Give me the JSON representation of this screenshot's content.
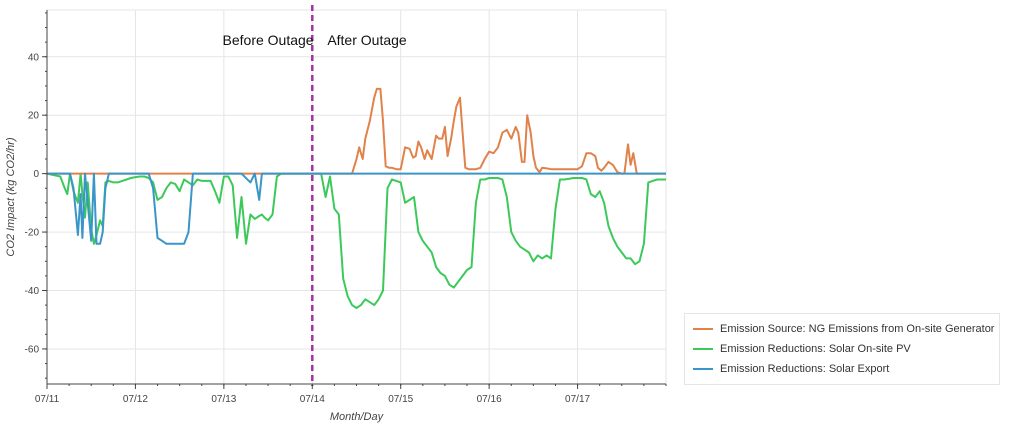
{
  "chart_data": {
    "type": "line",
    "xlabel": "Month/Day",
    "ylabel": "CO2 Impact (kg CO2/hr)",
    "xlim": [
      0,
      7.0
    ],
    "ylim": [
      -72,
      56
    ],
    "x_ticks": [
      {
        "value": 0,
        "label": "07/11"
      },
      {
        "value": 1,
        "label": "07/12"
      },
      {
        "value": 2,
        "label": "07/13"
      },
      {
        "value": 3,
        "label": "07/14"
      },
      {
        "value": 4,
        "label": "07/15"
      },
      {
        "value": 5,
        "label": "07/16"
      },
      {
        "value": 6,
        "label": "07/17"
      }
    ],
    "y_ticks": [
      -60,
      -40,
      -20,
      0,
      20,
      40
    ],
    "grid": true,
    "legend_position": "bottom-right outside plot",
    "annotations": [
      {
        "text": "Before Outage",
        "x": 2.5,
        "y": 44,
        "anchor": "middle"
      },
      {
        "text": "After Outage",
        "x": 3.17,
        "y": 44,
        "anchor": "start"
      }
    ],
    "vline": {
      "x": 3.0,
      "color": "#a1349e",
      "style": "dashed"
    },
    "series": [
      {
        "name": "Emission Source: NG Emissions from On-site Generator",
        "color": "#e0824a",
        "x": [
          0,
          3.0,
          3.45,
          3.5,
          3.53,
          3.57,
          3.6,
          3.65,
          3.7,
          3.73,
          3.77,
          3.8,
          3.83,
          3.87,
          3.9,
          3.95,
          4.0,
          4.05,
          4.1,
          4.14,
          4.17,
          4.2,
          4.23,
          4.27,
          4.3,
          4.35,
          4.4,
          4.43,
          4.47,
          4.5,
          4.53,
          4.57,
          4.6,
          4.63,
          4.67,
          4.7,
          4.73,
          4.77,
          4.8,
          4.85,
          4.9,
          4.95,
          5.0,
          5.05,
          5.1,
          5.15,
          5.2,
          5.25,
          5.3,
          5.33,
          5.37,
          5.4,
          5.43,
          5.47,
          5.5,
          5.53,
          5.57,
          5.6,
          5.65,
          5.7,
          5.75,
          5.85,
          6.0,
          6.05,
          6.1,
          6.15,
          6.2,
          6.23,
          6.27,
          6.3,
          6.35,
          6.4,
          6.45,
          6.5,
          6.53,
          6.57,
          6.6,
          6.63,
          6.67,
          6.7,
          7.0
        ],
        "values": [
          0,
          0,
          0,
          5,
          9,
          5,
          12,
          18,
          26,
          29,
          29,
          18,
          2.5,
          2,
          2,
          1.5,
          1.5,
          9,
          8.5,
          5.5,
          6,
          11,
          9,
          5,
          8,
          5,
          13,
          12,
          12,
          16,
          6,
          12,
          18,
          23,
          26,
          14,
          2,
          1.5,
          1.5,
          1.5,
          2,
          5,
          7.5,
          7,
          9,
          14,
          15,
          12,
          16,
          14,
          4,
          4,
          20,
          14,
          6,
          2,
          0.5,
          2,
          1.8,
          1.5,
          1.5,
          1.5,
          1.5,
          2.5,
          7,
          7,
          6,
          2,
          1,
          2,
          4,
          3,
          0.5,
          0,
          0,
          10,
          3,
          7,
          0,
          0,
          0
        ]
      },
      {
        "name": "Emission Reductions: Solar On-site PV",
        "color": "#3cc95a",
        "x": [
          0,
          0.15,
          0.2,
          0.23,
          0.26,
          0.3,
          0.35,
          0.38,
          0.4,
          0.43,
          0.46,
          0.5,
          0.53,
          0.56,
          0.6,
          0.63,
          0.66,
          0.7,
          0.75,
          0.8,
          0.85,
          0.9,
          0.95,
          1.0,
          1.05,
          1.1,
          1.15,
          1.2,
          1.25,
          1.3,
          1.35,
          1.4,
          1.45,
          1.5,
          1.55,
          1.6,
          1.65,
          1.7,
          1.75,
          1.8,
          1.85,
          1.9,
          1.95,
          2.0,
          2.05,
          2.1,
          2.15,
          2.2,
          2.25,
          2.3,
          2.35,
          2.4,
          2.43,
          2.46,
          2.5,
          2.55,
          2.6,
          2.65,
          2.7,
          2.75,
          2.8,
          2.85,
          2.9,
          2.95,
          3.0,
          3.05,
          3.1,
          3.15,
          3.2,
          3.25,
          3.3,
          3.35,
          3.4,
          3.45,
          3.5,
          3.55,
          3.6,
          3.65,
          3.7,
          3.75,
          3.8,
          3.85,
          3.9,
          3.95,
          4.0,
          4.05,
          4.1,
          4.15,
          4.2,
          4.25,
          4.3,
          4.35,
          4.4,
          4.45,
          4.5,
          4.55,
          4.6,
          4.65,
          4.7,
          4.75,
          4.8,
          4.85,
          4.9,
          4.95,
          5.0,
          5.05,
          5.1,
          5.15,
          5.2,
          5.25,
          5.3,
          5.35,
          5.4,
          5.45,
          5.5,
          5.55,
          5.6,
          5.65,
          5.7,
          5.75,
          5.8,
          5.85,
          5.9,
          5.95,
          6.0,
          6.05,
          6.1,
          6.15,
          6.2,
          6.25,
          6.3,
          6.35,
          6.4,
          6.45,
          6.5,
          6.55,
          6.6,
          6.65,
          6.7,
          6.75,
          6.8,
          6.85,
          6.9,
          6.95,
          7.0
        ],
        "values": [
          0,
          -1,
          -5,
          -7,
          0,
          -6,
          -10,
          0,
          -7,
          -15,
          -3,
          -19,
          -24,
          -21,
          -16,
          -18,
          -3,
          -2.5,
          -3,
          -3,
          -2.5,
          -2,
          -1.5,
          -1.2,
          -1,
          -1,
          -1.5,
          -3,
          -9,
          -8,
          -5,
          -3,
          -3.5,
          -6,
          -2,
          -3,
          -4,
          -2,
          -2.5,
          -2.5,
          -2.5,
          -6,
          -10,
          -1,
          -1,
          -4,
          -22,
          -8,
          -24,
          -14,
          -15.5,
          -14.5,
          -14,
          -15,
          -16,
          -14,
          -1,
          0,
          0,
          0,
          0,
          0,
          0,
          0,
          0,
          0,
          0,
          -8,
          -1,
          -12,
          -14,
          -36,
          -42,
          -45,
          -46,
          -45,
          -43,
          -44,
          -45,
          -43,
          -40,
          -5,
          -2,
          -2.5,
          -3,
          -10,
          -9,
          -8,
          -20,
          -23,
          -25,
          -27,
          -32,
          -34,
          -35,
          -38,
          -39,
          -37,
          -35,
          -33,
          -32,
          -10,
          -2,
          -2,
          -1.5,
          -1.5,
          -1.5,
          -2,
          -8,
          -20,
          -23,
          -25,
          -26,
          -27,
          -30,
          -28,
          -29,
          -28,
          -29,
          -12,
          -2,
          -2,
          -1.8,
          -1.5,
          -1.5,
          -1.5,
          -2,
          -7,
          -8,
          -6,
          -10,
          -18,
          -22,
          -25,
          -27,
          -29,
          -29,
          -31,
          -30,
          -24,
          -3,
          -2.5,
          -2,
          -2,
          -2
        ]
      },
      {
        "name": "Emission Reductions: Solar Export",
        "color": "#3a95c8",
        "x": [
          0,
          0.15,
          0.2,
          0.23,
          0.26,
          0.3,
          0.35,
          0.38,
          0.4,
          0.43,
          0.46,
          0.5,
          0.53,
          0.56,
          0.6,
          0.63,
          0.66,
          0.7,
          0.75,
          0.8,
          1.0,
          1.15,
          1.2,
          1.25,
          1.3,
          1.35,
          1.4,
          1.45,
          1.5,
          1.55,
          1.6,
          1.65,
          1.7,
          1.75,
          1.8,
          2.0,
          2.2,
          2.3,
          2.35,
          2.4,
          2.43,
          2.46,
          2.5,
          2.55,
          3.0,
          7.0
        ],
        "values": [
          0,
          0,
          0,
          0,
          0,
          -5,
          -21,
          -7,
          -22,
          0,
          -10,
          -23,
          0,
          -24,
          -24,
          -20,
          -5,
          0,
          0,
          0,
          0,
          0,
          -5,
          -22,
          -23,
          -24,
          -24,
          -24,
          -24,
          -24,
          -20,
          0,
          0,
          0,
          0,
          0,
          0,
          -3,
          0,
          -9,
          0,
          0,
          0,
          0,
          0,
          0
        ]
      }
    ]
  }
}
